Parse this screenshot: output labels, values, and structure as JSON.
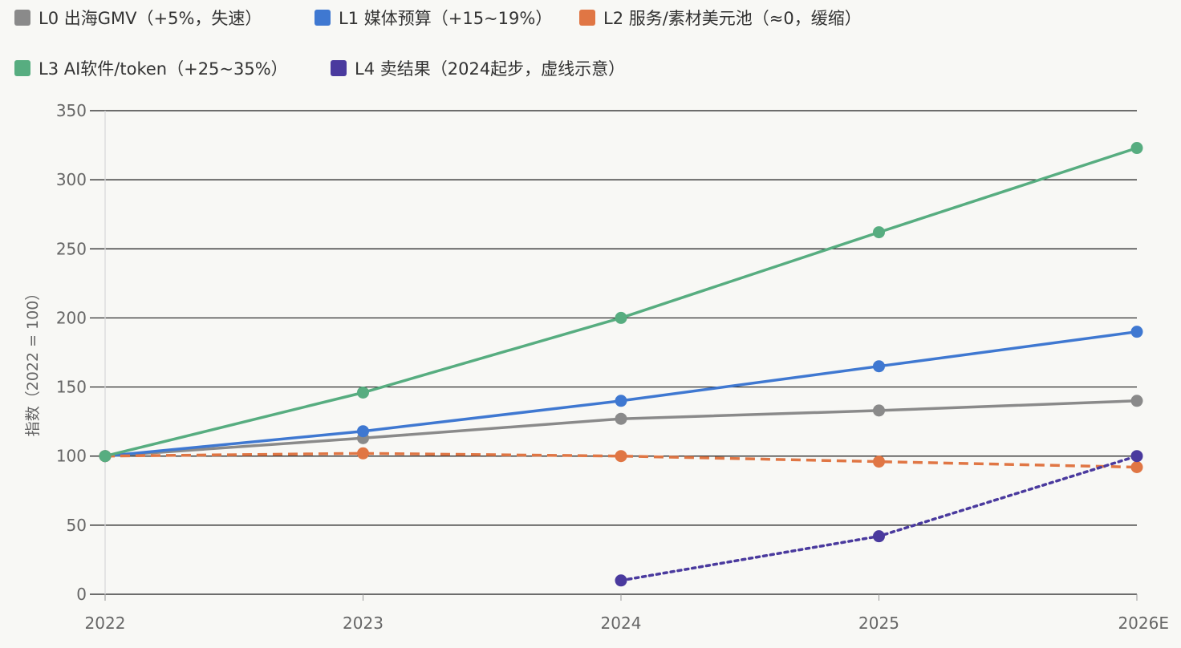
{
  "chart_data": {
    "type": "line",
    "categories": [
      "2022",
      "2023",
      "2024",
      "2025",
      "2026E"
    ],
    "ylabel": "指数（2022 = 100）",
    "ylim": [
      0,
      350
    ],
    "yticks": [
      0,
      50,
      100,
      150,
      200,
      250,
      300,
      350
    ],
    "grid": true,
    "legend_position": "top",
    "series": [
      {
        "name": "L0 出海GMV（+5%，失速）",
        "color": "#8a8a8a",
        "dash": "solid",
        "values": [
          100,
          113,
          127,
          133,
          140
        ]
      },
      {
        "name": "L1 媒体预算（+15~19%）",
        "color": "#3f78d1",
        "dash": "solid",
        "values": [
          100,
          118,
          140,
          165,
          190
        ]
      },
      {
        "name": "L2 服务/素材美元池（≈0，缓缩）",
        "color": "#e07644",
        "dash": "dashed",
        "values": [
          100,
          102,
          100,
          96,
          92
        ]
      },
      {
        "name": "L3 AI软件/token（+25~35%）",
        "color": "#57ad80",
        "dash": "solid",
        "values": [
          100,
          146,
          200,
          262,
          323
        ]
      },
      {
        "name": "L4 卖结果（2024起步，虚线示意）",
        "color": "#4a3a9e",
        "dash": "dotted",
        "values": [
          null,
          null,
          10,
          42,
          100
        ]
      }
    ]
  }
}
